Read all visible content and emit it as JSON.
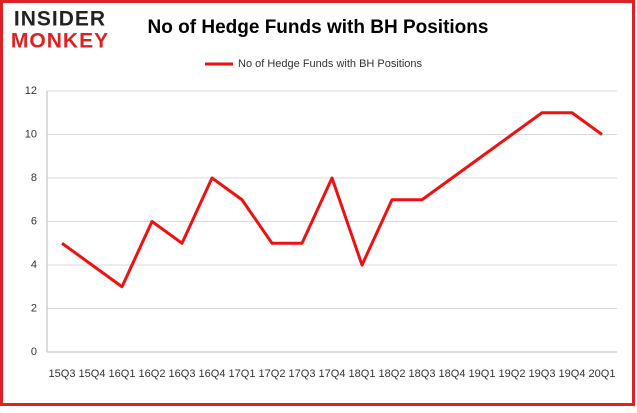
{
  "logo": {
    "top": "INSIDER",
    "bottom": "MONKEY"
  },
  "chart_data": {
    "type": "line",
    "title": "No of Hedge Funds with BH Positions",
    "categories": [
      "15Q3",
      "15Q4",
      "16Q1",
      "16Q2",
      "16Q3",
      "16Q4",
      "17Q1",
      "17Q2",
      "17Q3",
      "17Q4",
      "18Q1",
      "18Q2",
      "18Q3",
      "18Q4",
      "19Q1",
      "19Q2",
      "19Q3",
      "19Q4",
      "20Q1"
    ],
    "series": [
      {
        "name": "No of Hedge Funds with BH Positions",
        "color": "#ee1111",
        "values": [
          5,
          4,
          3,
          6,
          5,
          8,
          7,
          5,
          5,
          8,
          4,
          7,
          7,
          8,
          9,
          10,
          11,
          11,
          10
        ]
      }
    ],
    "ylim": [
      0,
      12
    ],
    "yticks": [
      0,
      2,
      4,
      6,
      8,
      10,
      12
    ],
    "grid": true,
    "legend": "top"
  }
}
